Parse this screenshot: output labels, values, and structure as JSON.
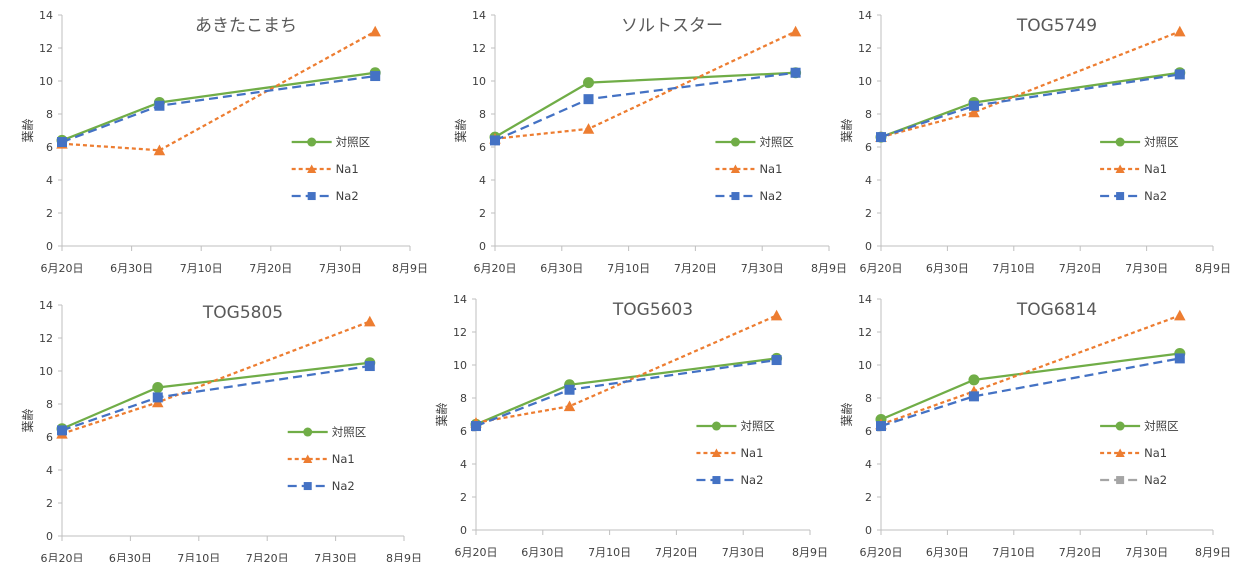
{
  "x_dates": [
    "8/4/2020",
    "7/4/2020",
    "6/20/2020"
  ],
  "chart_data": [
    {
      "type": "line",
      "title": "あきたこまち",
      "ylabel": "葉齢",
      "xlabel": "",
      "ylim": [
        0,
        14
      ],
      "yticks": [
        "0",
        "2",
        "4",
        "6",
        "8",
        "10",
        "12",
        "14"
      ],
      "xticks": [
        "6月20日",
        "6月30日",
        "7月10日",
        "7月20日",
        "7月30日",
        "8月9日"
      ],
      "x": [
        "6月20日",
        "7月4日",
        "8月4日"
      ],
      "series": [
        {
          "name": "対照区",
          "values": [
            6.4,
            8.7,
            10.5
          ],
          "color": "#70ad47",
          "marker": "circle",
          "dash": "solid"
        },
        {
          "name": "Na1",
          "values": [
            6.2,
            5.8,
            13.0
          ],
          "color": "#ed7d31",
          "marker": "triangle",
          "dash": "short"
        },
        {
          "name": "Na2",
          "values": [
            6.3,
            8.5,
            10.3
          ],
          "color": "#4472c4",
          "marker": "square",
          "dash": "long"
        }
      ],
      "legend_position": "right"
    },
    {
      "type": "line",
      "title": "ソルトスター",
      "ylabel": "葉齢",
      "xlabel": "",
      "ylim": [
        0,
        14
      ],
      "yticks": [
        "0",
        "2",
        "4",
        "6",
        "8",
        "10",
        "12",
        "14"
      ],
      "xticks": [
        "6月20日",
        "6月30日",
        "7月10日",
        "7月20日",
        "7月30日",
        "8月9日"
      ],
      "x": [
        "6月20日",
        "7月4日",
        "8月4日"
      ],
      "series": [
        {
          "name": "対照区",
          "values": [
            6.6,
            9.9,
            10.5
          ],
          "color": "#70ad47",
          "marker": "circle",
          "dash": "solid"
        },
        {
          "name": "Na1",
          "values": [
            6.5,
            7.1,
            13.0
          ],
          "color": "#ed7d31",
          "marker": "triangle",
          "dash": "short"
        },
        {
          "name": "Na2",
          "values": [
            6.4,
            8.9,
            10.5
          ],
          "color": "#4472c4",
          "marker": "square",
          "dash": "long"
        }
      ],
      "legend_position": "right"
    },
    {
      "type": "line",
      "title": "TOG5749",
      "ylabel": "葉齢",
      "xlabel": "",
      "ylim": [
        0,
        14
      ],
      "yticks": [
        "0",
        "2",
        "4",
        "6",
        "8",
        "10",
        "12",
        "14"
      ],
      "xticks": [
        "6月20日",
        "6月30日",
        "7月10日",
        "7月20日",
        "7月30日",
        "8月9日"
      ],
      "x": [
        "6月20日",
        "7月4日",
        "8月4日"
      ],
      "series": [
        {
          "name": "対照区",
          "values": [
            6.6,
            8.7,
            10.5
          ],
          "color": "#70ad47",
          "marker": "circle",
          "dash": "solid"
        },
        {
          "name": "Na1",
          "values": [
            6.6,
            8.1,
            13.0
          ],
          "color": "#ed7d31",
          "marker": "triangle",
          "dash": "short"
        },
        {
          "name": "Na2",
          "values": [
            6.6,
            8.5,
            10.4
          ],
          "color": "#4472c4",
          "marker": "square",
          "dash": "long"
        }
      ],
      "legend_position": "right"
    },
    {
      "type": "line",
      "title": "TOG5805",
      "ylabel": "葉齢",
      "xlabel": "",
      "ylim": [
        0,
        14
      ],
      "yticks": [
        "0",
        "2",
        "4",
        "6",
        "8",
        "10",
        "12",
        "14"
      ],
      "xticks": [
        "6月20日",
        "6月30日",
        "7月10日",
        "7月20日",
        "7月30日",
        "8月9日"
      ],
      "x": [
        "6月20日",
        "7月4日",
        "8月4日"
      ],
      "series": [
        {
          "name": "対照区",
          "values": [
            6.5,
            9.0,
            10.5
          ],
          "color": "#70ad47",
          "marker": "circle",
          "dash": "solid"
        },
        {
          "name": "Na1",
          "values": [
            6.2,
            8.1,
            13.0
          ],
          "color": "#ed7d31",
          "marker": "triangle",
          "dash": "short"
        },
        {
          "name": "Na2",
          "values": [
            6.4,
            8.4,
            10.3
          ],
          "color": "#4472c4",
          "marker": "square",
          "dash": "long"
        }
      ],
      "legend_position": "right"
    },
    {
      "type": "line",
      "title": "TOG5603",
      "ylabel": "葉齢",
      "xlabel": "",
      "ylim": [
        0,
        14
      ],
      "yticks": [
        "0",
        "2",
        "4",
        "6",
        "8",
        "10",
        "12",
        "14"
      ],
      "xticks": [
        "6月20日",
        "6月30日",
        "7月10日",
        "7月20日",
        "7月30日",
        "8月9日"
      ],
      "x": [
        "6月20日",
        "7月4日",
        "8月4日"
      ],
      "series": [
        {
          "name": "対照区",
          "values": [
            6.4,
            8.8,
            10.4
          ],
          "color": "#70ad47",
          "marker": "circle",
          "dash": "solid"
        },
        {
          "name": "Na1",
          "values": [
            6.5,
            7.5,
            13.0
          ],
          "color": "#ed7d31",
          "marker": "triangle",
          "dash": "short"
        },
        {
          "name": "Na2",
          "values": [
            6.3,
            8.5,
            10.3
          ],
          "color": "#4472c4",
          "marker": "square",
          "dash": "long"
        }
      ],
      "legend_position": "right"
    },
    {
      "type": "line",
      "title": "TOG6814",
      "ylabel": "葉齢",
      "xlabel": "",
      "ylim": [
        0,
        14
      ],
      "yticks": [
        "0",
        "2",
        "4",
        "6",
        "8",
        "10",
        "12",
        "14"
      ],
      "xticks": [
        "6月20日",
        "6月30日",
        "7月10日",
        "7月20日",
        "7月30日",
        "8月9日"
      ],
      "x": [
        "6月20日",
        "7月4日",
        "8月4日"
      ],
      "series": [
        {
          "name": "対照区",
          "values": [
            6.7,
            9.1,
            10.7
          ],
          "color": "#70ad47",
          "marker": "circle",
          "dash": "solid"
        },
        {
          "name": "Na1",
          "values": [
            6.4,
            8.4,
            13.0
          ],
          "color": "#ed7d31",
          "marker": "triangle",
          "dash": "short"
        },
        {
          "name": "Na2",
          "values": [
            6.3,
            8.1,
            10.4
          ],
          "color": "#4472c4",
          "marker": "square",
          "dash": "long",
          "legend_color": "#a5a5a5"
        }
      ],
      "legend_position": "right"
    }
  ]
}
